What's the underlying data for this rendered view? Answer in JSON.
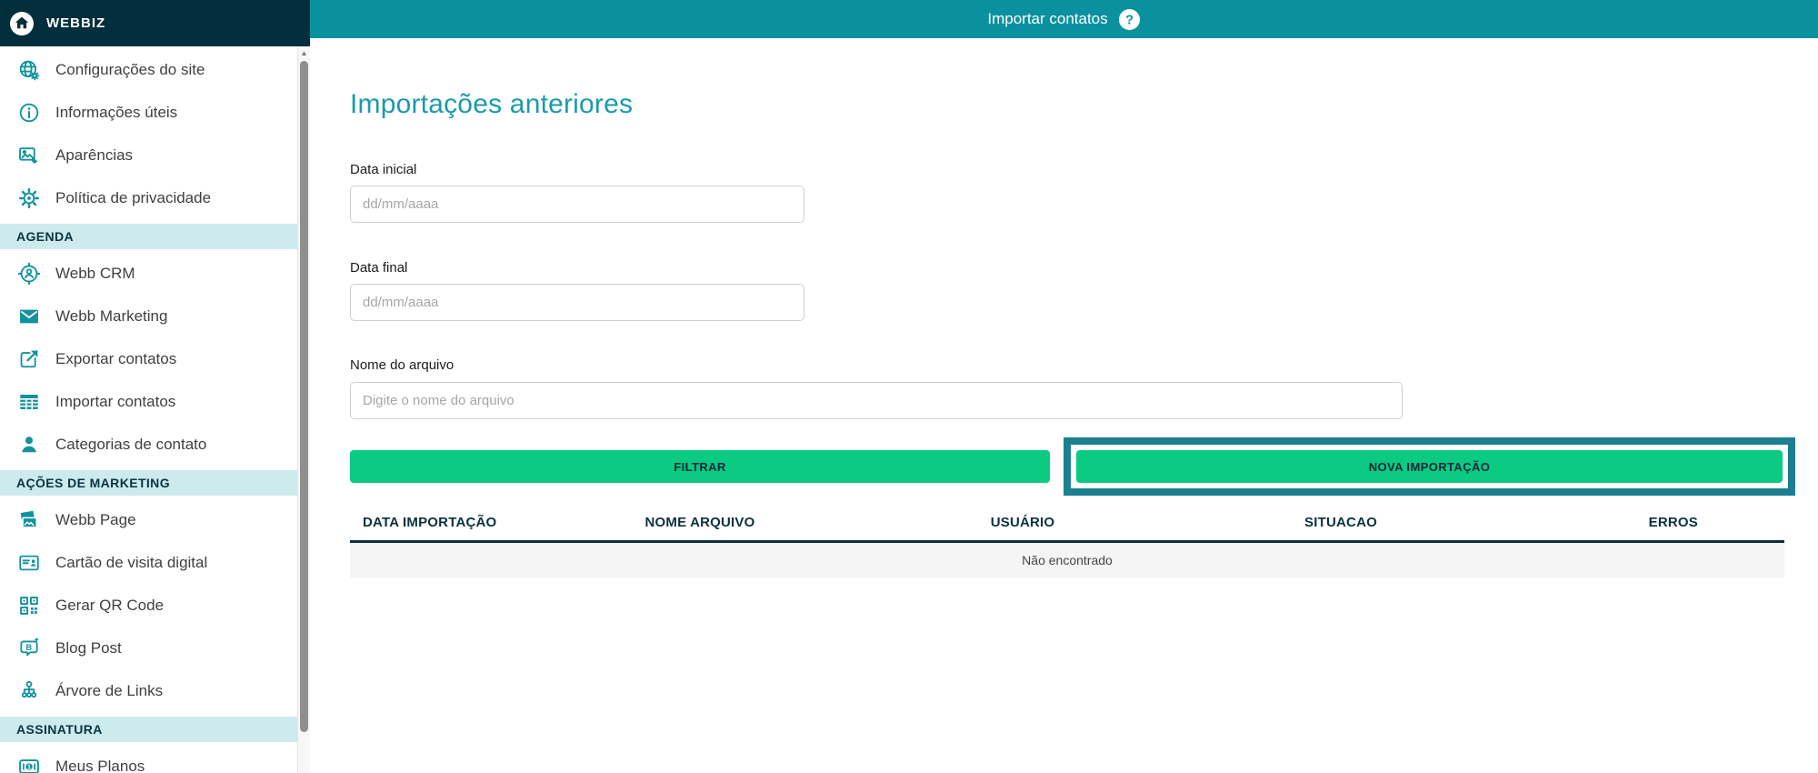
{
  "brand": {
    "name": "WEBBIZ",
    "logo_icon": "home-icon"
  },
  "topbar": {
    "title": "Importar contatos",
    "help_icon": "help-circle-icon",
    "help_glyph": "?"
  },
  "sidebar": {
    "scrollbar": {
      "up_arrow": "▲"
    },
    "items": [
      {
        "type": "item",
        "icon": "globe-gear-icon",
        "label": "Configurações do site"
      },
      {
        "type": "item",
        "icon": "info-icon",
        "label": "Informações úteis"
      },
      {
        "type": "item",
        "icon": "appearance-icon",
        "label": "Aparências"
      },
      {
        "type": "item",
        "icon": "gear-icon",
        "label": "Política de privacidade"
      },
      {
        "type": "section",
        "label": "AGENDA"
      },
      {
        "type": "item",
        "icon": "crm-target-user-icon",
        "label": "Webb CRM"
      },
      {
        "type": "item",
        "icon": "envelope-icon",
        "label": "Webb Marketing"
      },
      {
        "type": "item",
        "icon": "export-icon",
        "label": "Exportar contatos"
      },
      {
        "type": "item",
        "icon": "table-icon",
        "label": "Importar contatos"
      },
      {
        "type": "item",
        "icon": "user-icon",
        "label": "Categorias de contato"
      },
      {
        "type": "section",
        "label": "AÇÕES DE MARKETING"
      },
      {
        "type": "item",
        "icon": "pages-icon",
        "label": "Webb Page"
      },
      {
        "type": "item",
        "icon": "id-card-icon",
        "label": "Cartão de visita digital"
      },
      {
        "type": "item",
        "icon": "qr-code-icon",
        "label": "Gerar QR Code"
      },
      {
        "type": "item",
        "icon": "blog-icon",
        "label": "Blog Post"
      },
      {
        "type": "item",
        "icon": "tree-links-icon",
        "label": "Árvore de Links"
      },
      {
        "type": "section",
        "label": "ASSINATURA"
      },
      {
        "type": "item",
        "icon": "plans-icon",
        "label": "Meus Planos"
      }
    ]
  },
  "main": {
    "heading": "Importações anteriores",
    "form": {
      "data_inicial": {
        "label": "Data inicial",
        "placeholder": "dd/mm/aaaa",
        "value": ""
      },
      "data_final": {
        "label": "Data final",
        "placeholder": "dd/mm/aaaa",
        "value": ""
      },
      "nome_arquivo": {
        "label": "Nome do arquivo",
        "placeholder": "Digite o nome do arquivo",
        "value": ""
      }
    },
    "buttons": {
      "filtrar": "FILTRAR",
      "nova_importacao": "NOVA IMPORTAÇÃO"
    },
    "table": {
      "headers": [
        "DATA IMPORTAÇÃO",
        "NOME ARQUIVO",
        "USUÁRIO",
        "SITUACAO",
        "ERROS"
      ],
      "rows": [],
      "empty_text": "Não encontrado"
    }
  },
  "colors": {
    "topbar_teal": "#0a91a0",
    "sidebar_dark": "#032e3c",
    "icon_teal": "#12929f",
    "accent_green": "#0bca82",
    "highlight_border": "#1c7f8f",
    "section_bg": "#cdeaed",
    "heading_teal": "#1b9aaa"
  }
}
